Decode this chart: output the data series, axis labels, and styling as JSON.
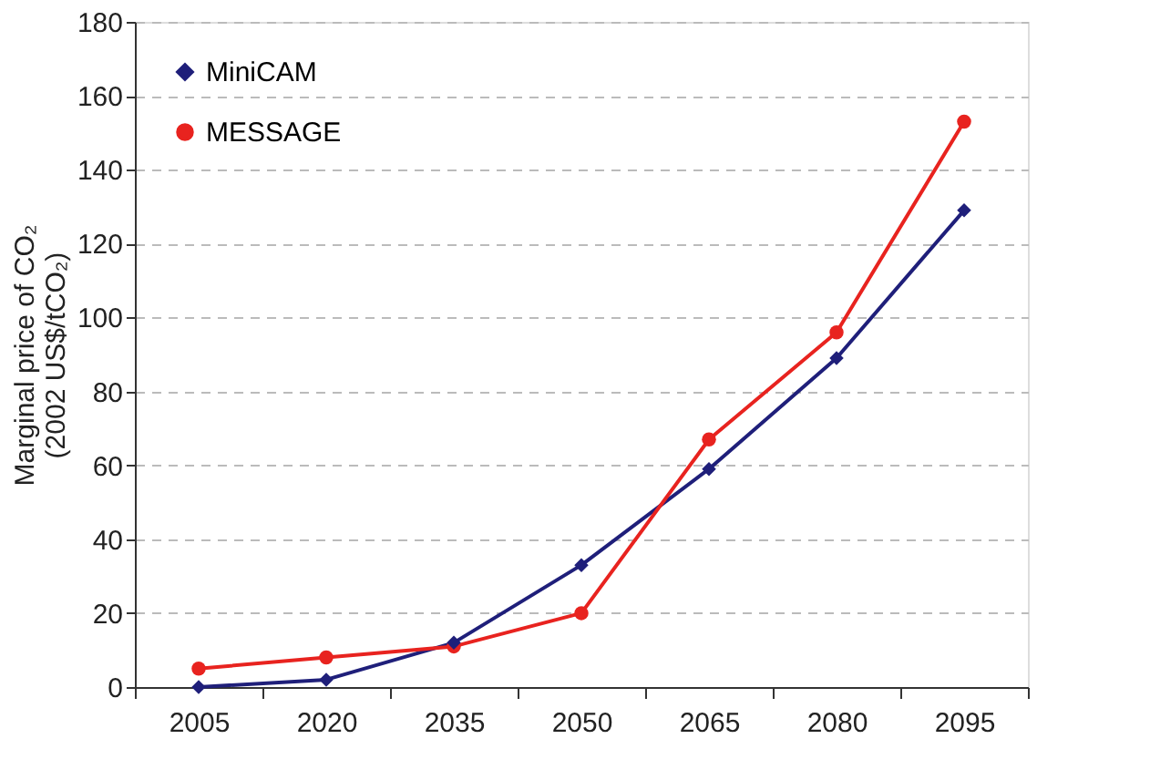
{
  "chart_data": {
    "type": "line",
    "ylabel": "Marginal price of CO₂\n(2002 US$/tCO₂)",
    "categories": [
      "2005",
      "2020",
      "2035",
      "2050",
      "2065",
      "2080",
      "2095"
    ],
    "series": [
      {
        "name": "MiniCAM",
        "color": "#1f1f7a",
        "marker": "diamond",
        "values": [
          0,
          2,
          12,
          33,
          59,
          89,
          129
        ]
      },
      {
        "name": "MESSAGE",
        "color": "#e8231f",
        "marker": "circle",
        "values": [
          5,
          8,
          11,
          20,
          67,
          96,
          153
        ]
      }
    ],
    "ylim": [
      0,
      180
    ],
    "yticks": [
      0,
      20,
      40,
      60,
      80,
      100,
      120,
      140,
      160,
      180
    ],
    "grid": "y",
    "legend": "top left",
    "line_style": "solid"
  }
}
